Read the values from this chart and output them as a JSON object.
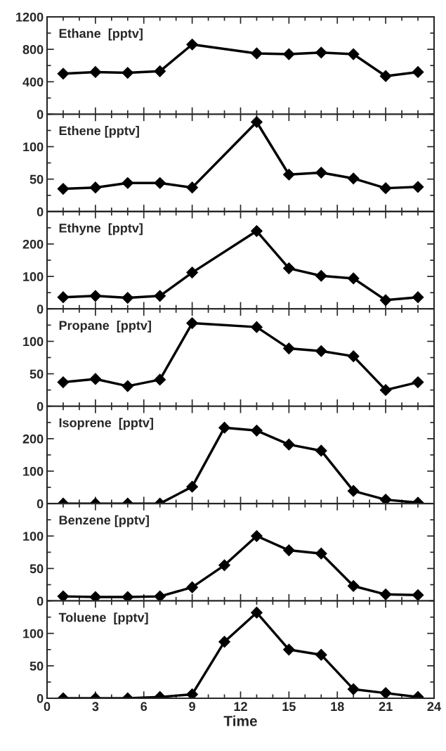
{
  "chart_data": [
    {
      "type": "line",
      "title": "Ethane  [pptv]",
      "x": [
        1,
        3,
        5,
        7,
        9,
        13,
        15,
        17,
        19,
        21,
        23
      ],
      "xlim": [
        0,
        24
      ],
      "xticks": [
        0,
        3,
        6,
        9,
        12,
        15,
        18,
        21,
        24
      ],
      "ylim": [
        0,
        1200
      ],
      "yticks": [
        0,
        400,
        800,
        1200
      ],
      "tick_labels": "y",
      "marker": "diamond",
      "line_style": "solid",
      "series": [
        {
          "color": "#000000",
          "values": [
            500,
            520,
            510,
            530,
            860,
            750,
            740,
            760,
            740,
            470,
            520
          ]
        }
      ]
    },
    {
      "type": "line",
      "title": "Ethene [pptv]",
      "x": [
        1,
        3,
        5,
        7,
        9,
        13,
        15,
        17,
        19,
        21,
        23
      ],
      "xlim": [
        0,
        24
      ],
      "xticks": [
        0,
        3,
        6,
        9,
        12,
        15,
        18,
        21,
        24
      ],
      "ylim": [
        0,
        150
      ],
      "yticks": [
        0,
        50,
        100
      ],
      "tick_labels": "y",
      "marker": "diamond",
      "line_style": "solid",
      "series": [
        {
          "color": "#000000",
          "values": [
            35,
            37,
            44,
            44,
            37,
            138,
            57,
            60,
            51,
            36,
            38
          ]
        }
      ]
    },
    {
      "type": "line",
      "title": "Ethyne  [pptv]",
      "x": [
        1,
        3,
        5,
        7,
        9,
        13,
        15,
        17,
        19,
        21,
        23
      ],
      "xlim": [
        0,
        24
      ],
      "xticks": [
        0,
        3,
        6,
        9,
        12,
        15,
        18,
        21,
        24
      ],
      "ylim": [
        0,
        300
      ],
      "yticks": [
        0,
        100,
        200
      ],
      "tick_labels": "y",
      "marker": "diamond",
      "line_style": "solid",
      "series": [
        {
          "color": "#000000",
          "values": [
            36,
            40,
            34,
            40,
            112,
            240,
            125,
            102,
            94,
            27,
            36
          ]
        }
      ]
    },
    {
      "type": "line",
      "title": "Propane  [pptv]",
      "x": [
        1,
        3,
        5,
        7,
        9,
        13,
        15,
        17,
        19,
        21,
        23
      ],
      "xlim": [
        0,
        24
      ],
      "xticks": [
        0,
        3,
        6,
        9,
        12,
        15,
        18,
        21,
        24
      ],
      "ylim": [
        0,
        150
      ],
      "yticks": [
        0,
        50,
        100
      ],
      "tick_labels": "y",
      "marker": "diamond",
      "line_style": "solid",
      "series": [
        {
          "color": "#000000",
          "values": [
            37,
            42,
            31,
            41,
            128,
            122,
            89,
            85,
            77,
            25,
            37
          ]
        }
      ]
    },
    {
      "type": "line",
      "title": "Isoprene  [pptv]",
      "x": [
        1,
        3,
        5,
        7,
        9,
        11,
        13,
        15,
        17,
        19,
        21,
        23
      ],
      "xlim": [
        0,
        24
      ],
      "xticks": [
        0,
        3,
        6,
        9,
        12,
        15,
        18,
        21,
        24
      ],
      "ylim": [
        0,
        300
      ],
      "yticks": [
        0,
        100,
        200
      ],
      "tick_labels": "y",
      "marker": "diamond",
      "line_style": "solid",
      "series": [
        {
          "color": "#000000",
          "values": [
            0,
            0,
            0,
            0,
            52,
            234,
            225,
            182,
            163,
            39,
            12,
            3
          ]
        }
      ]
    },
    {
      "type": "line",
      "title": "Benzene [pptv]",
      "x": [
        1,
        3,
        5,
        7,
        9,
        11,
        13,
        15,
        17,
        19,
        21,
        23
      ],
      "xlim": [
        0,
        24
      ],
      "xticks": [
        0,
        3,
        6,
        9,
        12,
        15,
        18,
        21,
        24
      ],
      "ylim": [
        0,
        150
      ],
      "yticks": [
        0,
        50,
        100
      ],
      "tick_labels": "y",
      "marker": "diamond",
      "line_style": "solid",
      "series": [
        {
          "color": "#000000",
          "values": [
            7,
            6,
            6,
            7,
            21,
            55,
            100,
            78,
            73,
            23,
            10,
            9
          ]
        }
      ]
    },
    {
      "type": "line",
      "title": "Toluene  [pptv]",
      "xlabel": "Time",
      "x": [
        1,
        3,
        5,
        7,
        9,
        11,
        13,
        15,
        17,
        19,
        21,
        23
      ],
      "xlim": [
        0,
        24
      ],
      "xticks": [
        0,
        3,
        6,
        9,
        12,
        15,
        18,
        21,
        24
      ],
      "ylim": [
        0,
        150
      ],
      "yticks": [
        0,
        50,
        100
      ],
      "marker": "diamond",
      "line_style": "solid",
      "series": [
        {
          "color": "#000000",
          "values": [
            0,
            0,
            0,
            2,
            6,
            87,
            132,
            75,
            67,
            14,
            8,
            2
          ]
        }
      ]
    }
  ]
}
